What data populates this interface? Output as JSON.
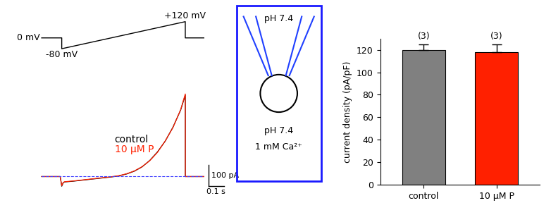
{
  "chart_data": [
    {
      "type": "line",
      "tick_labels": false,
      "x": [
        -0.15,
        -0.03,
        -0.02,
        -0.01,
        0.0,
        0.05,
        0.1,
        0.15,
        0.2,
        0.25,
        0.3,
        0.35,
        0.4,
        0.45,
        0.5,
        0.55,
        0.6,
        0.65,
        0.7,
        0.75,
        0.78,
        0.78,
        0.8,
        0.9
      ],
      "series": [
        {
          "name": "control",
          "color": "#000000",
          "values": [
            0,
            0,
            -45,
            -28,
            -25,
            -22,
            -18,
            -14,
            -10,
            -6,
            -2,
            3,
            12,
            25,
            45,
            75,
            115,
            165,
            230,
            310,
            380,
            0,
            0,
            0
          ]
        },
        {
          "name": "10 μM P",
          "color": "#ff2000",
          "values": [
            0,
            0,
            -42,
            -27,
            -24,
            -21,
            -17,
            -13,
            -9,
            -5,
            -1,
            4,
            13,
            26,
            46,
            74,
            113,
            166,
            228,
            312,
            385,
            0,
            0,
            0
          ]
        }
      ],
      "baseline": 0,
      "protocol": {
        "x": [
          -0.15,
          -0.02,
          -0.02,
          0.78,
          0.78,
          0.9
        ],
        "values": [
          0,
          0,
          -80,
          120,
          0,
          0
        ],
        "labels": [
          "0 mV",
          "-80 mV",
          "+120 mV"
        ]
      },
      "scale_bars": {
        "x": 0.1,
        "x_label": "0.1 s",
        "y": 100,
        "y_label": "100 pA"
      }
    },
    {
      "type": "bar",
      "categories": [
        "control",
        "10 μM P"
      ],
      "values": [
        120,
        118
      ],
      "errors": [
        5,
        7
      ],
      "colors": [
        "#808080",
        "#ff2000"
      ],
      "n_labels": [
        "(3)",
        "(3)"
      ],
      "y_label": "current density (pA/pF)",
      "ylim": [
        0,
        130
      ],
      "yticks": [
        0,
        20,
        40,
        60,
        80,
        100,
        120
      ]
    }
  ],
  "diagram": {
    "pipette_solution": "pH 7.4",
    "bath_solution": [
      "pH 7.4",
      "1 mM Ca²⁺"
    ]
  }
}
